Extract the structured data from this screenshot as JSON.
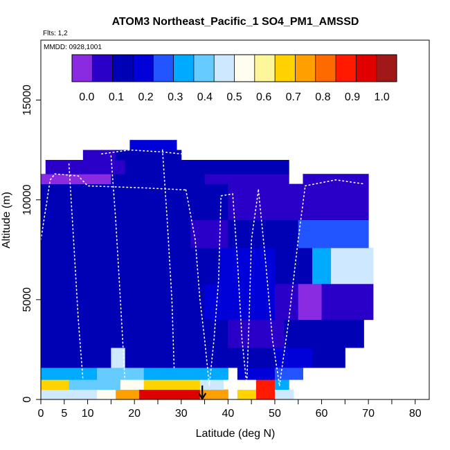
{
  "chart_data": {
    "type": "heatmap",
    "title": "ATOM3 Northeast_Pacific_1 SO4_PM1_AMSSD",
    "flights_label": "Flts: 1,2",
    "mmdd_label": "MMDD: 0928,1001",
    "xlabel": "Latitude (deg N)",
    "ylabel": "Altitude (m)",
    "xlim": [
      0,
      83
    ],
    "ylim": [
      0,
      18000
    ],
    "x_ticks": [
      0,
      5,
      10,
      20,
      30,
      40,
      50,
      60,
      70,
      80
    ],
    "x_minor_ticks": [
      15,
      25,
      35,
      45,
      55,
      65,
      75
    ],
    "y_ticks": [
      0,
      5000,
      10000,
      15000
    ],
    "colorbar": {
      "range": [
        -0.05,
        1.05
      ],
      "tick_labels": [
        "0.0",
        "0.1",
        "0.2",
        "0.3",
        "0.4",
        "0.5",
        "0.6",
        "0.7",
        "0.8",
        "0.9",
        "1.0"
      ],
      "tick_values": [
        0.0,
        0.1,
        0.2,
        0.3,
        0.4,
        0.5,
        0.6,
        0.7,
        0.8,
        0.9,
        1.0
      ],
      "colors": [
        "#8a2be2",
        "#2a00c8",
        "#0000b4",
        "#0000d8",
        "#2255ff",
        "#00aaff",
        "#66ccff",
        "#cde8ff",
        "#fffdf0",
        "#fff59a",
        "#ffd200",
        "#ffa000",
        "#ff6a00",
        "#ff1a00",
        "#e00000",
        "#a01818"
      ]
    },
    "grid": false,
    "annotation": {
      "type": "arrow",
      "x": 34.5,
      "y_from": 700,
      "y_to": 0,
      "meaning": "down arrow at surface"
    },
    "cells": [
      {
        "x0": 0,
        "x1": 12,
        "y0": 0,
        "y1": 500,
        "v": 0.45
      },
      {
        "x0": 12,
        "x1": 16,
        "y0": 0,
        "y1": 500,
        "v": 0.55
      },
      {
        "x0": 16,
        "x1": 21,
        "y0": 0,
        "y1": 500,
        "v": 0.72
      },
      {
        "x0": 21,
        "x1": 34,
        "y0": 0,
        "y1": 500,
        "v": 0.92
      },
      {
        "x0": 34,
        "x1": 40,
        "y0": 0,
        "y1": 500,
        "v": 0.75
      },
      {
        "x0": 42,
        "x1": 46,
        "y0": 0,
        "y1": 500,
        "v": 0.7
      },
      {
        "x0": 46,
        "x1": 50,
        "y0": 0,
        "y1": 500,
        "v": 0.85
      },
      {
        "x0": 50,
        "x1": 54,
        "y0": 0,
        "y1": 500,
        "v": 0.45
      },
      {
        "x0": 0,
        "x1": 6,
        "y0": 500,
        "y1": 1000,
        "v": 0.68
      },
      {
        "x0": 6,
        "x1": 17,
        "y0": 500,
        "y1": 1000,
        "v": 0.38
      },
      {
        "x0": 17,
        "x1": 22,
        "y0": 500,
        "y1": 1000,
        "v": 0.5
      },
      {
        "x0": 22,
        "x1": 34,
        "y0": 500,
        "y1": 1000,
        "v": 0.66
      },
      {
        "x0": 34,
        "x1": 39,
        "y0": 500,
        "y1": 1000,
        "v": 0.45
      },
      {
        "x0": 42,
        "x1": 46,
        "y0": 500,
        "y1": 1000,
        "v": 0.5
      },
      {
        "x0": 46,
        "x1": 50,
        "y0": 500,
        "y1": 1000,
        "v": 0.9
      },
      {
        "x0": 50,
        "x1": 53,
        "y0": 500,
        "y1": 1000,
        "v": 0.35
      },
      {
        "x0": 0,
        "x1": 12,
        "y0": 1000,
        "y1": 1600,
        "v": 0.32
      },
      {
        "x0": 12,
        "x1": 22,
        "y0": 1000,
        "y1": 1600,
        "v": 0.38
      },
      {
        "x0": 22,
        "x1": 40,
        "y0": 1000,
        "y1": 1600,
        "v": 0.3
      },
      {
        "x0": 42,
        "x1": 50,
        "y0": 1000,
        "y1": 1600,
        "v": 0.18
      },
      {
        "x0": 50,
        "x1": 56,
        "y0": 1000,
        "y1": 1600,
        "v": 0.25
      },
      {
        "x0": 0,
        "x1": 15,
        "y0": 1600,
        "y1": 2600,
        "v": 0.12
      },
      {
        "x0": 15,
        "x1": 18,
        "y0": 1600,
        "y1": 2600,
        "v": 0.45
      },
      {
        "x0": 18,
        "x1": 40,
        "y0": 1600,
        "y1": 2600,
        "v": 0.15
      },
      {
        "x0": 40,
        "x1": 50,
        "y0": 1600,
        "y1": 2600,
        "v": 0.1
      },
      {
        "x0": 50,
        "x1": 58,
        "y0": 1600,
        "y1": 2600,
        "v": 0.2
      },
      {
        "x0": 58,
        "x1": 65,
        "y0": 1600,
        "y1": 2600,
        "v": 0.12
      },
      {
        "x0": 0,
        "x1": 32,
        "y0": 2600,
        "y1": 4000,
        "v": 0.12
      },
      {
        "x0": 32,
        "x1": 40,
        "y0": 2600,
        "y1": 4000,
        "v": 0.1
      },
      {
        "x0": 40,
        "x1": 52,
        "y0": 2600,
        "y1": 4000,
        "v": 0.05
      },
      {
        "x0": 52,
        "x1": 60,
        "y0": 2600,
        "y1": 4000,
        "v": 0.12
      },
      {
        "x0": 60,
        "x1": 69,
        "y0": 2600,
        "y1": 4000,
        "v": 0.1
      },
      {
        "x0": 0,
        "x1": 35,
        "y0": 4000,
        "y1": 5800,
        "v": 0.15
      },
      {
        "x0": 35,
        "x1": 50,
        "y0": 4000,
        "y1": 5800,
        "v": 0.22
      },
      {
        "x0": 50,
        "x1": 55,
        "y0": 4000,
        "y1": 5800,
        "v": 0.08
      },
      {
        "x0": 55,
        "x1": 60,
        "y0": 4000,
        "y1": 5800,
        "v": -0.02
      },
      {
        "x0": 60,
        "x1": 71,
        "y0": 4000,
        "y1": 5800,
        "v": 0.02
      },
      {
        "x0": 0,
        "x1": 38,
        "y0": 5800,
        "y1": 7600,
        "v": 0.12
      },
      {
        "x0": 38,
        "x1": 50,
        "y0": 5800,
        "y1": 7600,
        "v": 0.2
      },
      {
        "x0": 50,
        "x1": 58,
        "y0": 5800,
        "y1": 7600,
        "v": 0.1
      },
      {
        "x0": 58,
        "x1": 62,
        "y0": 5800,
        "y1": 7600,
        "v": 0.3
      },
      {
        "x0": 62,
        "x1": 71,
        "y0": 5800,
        "y1": 7600,
        "v": 0.45
      },
      {
        "x0": 0,
        "x1": 32,
        "y0": 7600,
        "y1": 9000,
        "v": 0.1
      },
      {
        "x0": 32,
        "x1": 40,
        "y0": 7600,
        "y1": 9000,
        "v": 0.02
      },
      {
        "x0": 40,
        "x1": 55,
        "y0": 7600,
        "y1": 9000,
        "v": 0.15
      },
      {
        "x0": 55,
        "x1": 70,
        "y0": 7600,
        "y1": 9000,
        "v": 0.25
      },
      {
        "x0": 0,
        "x1": 40,
        "y0": 9000,
        "y1": 10800,
        "v": 0.1
      },
      {
        "x0": 40,
        "x1": 70,
        "y0": 9000,
        "y1": 10800,
        "v": 0.08
      },
      {
        "x0": 0,
        "x1": 15,
        "y0": 10800,
        "y1": 11300,
        "v": 0.0
      },
      {
        "x0": 15,
        "x1": 35,
        "y0": 10800,
        "y1": 11300,
        "v": 0.12
      },
      {
        "x0": 35,
        "x1": 53,
        "y0": 10800,
        "y1": 11300,
        "v": 0.08
      },
      {
        "x0": 56,
        "x1": 70,
        "y0": 10800,
        "y1": 11300,
        "v": 0.05
      },
      {
        "x0": 1,
        "x1": 18,
        "y0": 11300,
        "y1": 12000,
        "v": 0.08
      },
      {
        "x0": 18,
        "x1": 53,
        "y0": 11300,
        "y1": 12000,
        "v": 0.1
      },
      {
        "x0": 9,
        "x1": 16,
        "y0": 12000,
        "y1": 12500,
        "v": 0.05
      },
      {
        "x0": 16,
        "x1": 30,
        "y0": 12000,
        "y1": 12500,
        "v": 0.12
      },
      {
        "x0": 19,
        "x1": 29,
        "y0": 12500,
        "y1": 13000,
        "v": 0.22
      }
    ],
    "flight_tracks": [
      {
        "points": [
          [
            0,
            8000
          ],
          [
            1,
            9500
          ],
          [
            2,
            11000
          ],
          [
            3,
            11300
          ]
        ]
      },
      {
        "points": [
          [
            3,
            11300
          ],
          [
            8,
            11200
          ],
          [
            10,
            10700
          ],
          [
            22,
            10600
          ],
          [
            31,
            10500
          ]
        ]
      },
      {
        "points": [
          [
            31,
            10500
          ],
          [
            33,
            8000
          ],
          [
            34,
            5000
          ],
          [
            35,
            3000
          ],
          [
            36,
            700
          ]
        ]
      },
      {
        "points": [
          [
            36,
            700
          ],
          [
            37,
            3000
          ],
          [
            38,
            6000
          ],
          [
            38.5,
            10200
          ],
          [
            41,
            10300
          ]
        ]
      },
      {
        "points": [
          [
            41,
            10300
          ],
          [
            42,
            7000
          ],
          [
            43,
            3000
          ],
          [
            44,
            700
          ]
        ]
      },
      {
        "points": [
          [
            44,
            700
          ],
          [
            44.5,
            4000
          ],
          [
            45,
            8000
          ],
          [
            46.5,
            10500
          ]
        ]
      },
      {
        "points": [
          [
            46.5,
            10500
          ],
          [
            48,
            7000
          ],
          [
            49.5,
            3000
          ],
          [
            51,
            700
          ]
        ]
      },
      {
        "points": [
          [
            51,
            700
          ],
          [
            53,
            4000
          ],
          [
            55,
            8000
          ],
          [
            56.5,
            10700
          ]
        ]
      },
      {
        "points": [
          [
            56.5,
            10700
          ],
          [
            63,
            11000
          ],
          [
            69,
            10800
          ]
        ]
      },
      {
        "points": [
          [
            13,
            12300
          ],
          [
            19,
            12500
          ],
          [
            26,
            12400
          ],
          [
            30,
            12300
          ]
        ]
      },
      {
        "points": [
          [
            15,
            12200
          ],
          [
            16,
            9000
          ],
          [
            17,
            5000
          ],
          [
            18,
            800
          ]
        ]
      },
      {
        "points": [
          [
            6,
            11800
          ],
          [
            7,
            8000
          ],
          [
            8,
            4000
          ],
          [
            9,
            1000
          ]
        ]
      },
      {
        "points": [
          [
            26,
            12500
          ],
          [
            27,
            9000
          ],
          [
            28,
            5000
          ],
          [
            28.5,
            1500
          ]
        ]
      }
    ]
  }
}
